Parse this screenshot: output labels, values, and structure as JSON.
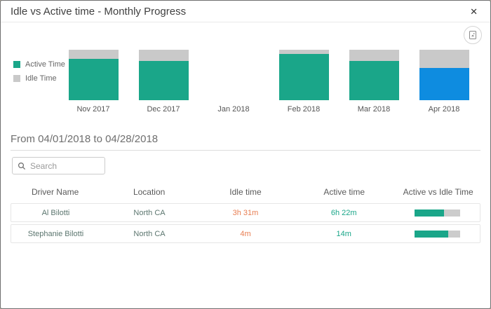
{
  "dialog": {
    "title": "Idle vs Active time - Monthly Progress",
    "close_glyph": "✕"
  },
  "toolbar": {
    "export_icon": "export-image-icon"
  },
  "chart_data": {
    "type": "bar",
    "stacked": true,
    "normalized_percent": true,
    "categories": [
      "Nov 2017",
      "Dec 2017",
      "Jan 2018",
      "Feb 2018",
      "Mar 2018",
      "Apr 2018"
    ],
    "series": [
      {
        "name": "Active Time",
        "color": "#1AA689",
        "values_pct": [
          82,
          78,
          0,
          92,
          78,
          64
        ]
      },
      {
        "name": "Idle Time",
        "color": "#C9C9C9",
        "values_pct": [
          18,
          22,
          0,
          8,
          22,
          36
        ]
      }
    ],
    "selected_category": "Apr 2018",
    "selected_color": "#0E8CE0",
    "legend_position": "left",
    "title": "Idle vs Active time - Monthly Progress"
  },
  "period": {
    "label": "From 04/01/2018 to 04/28/2018"
  },
  "search": {
    "placeholder": "Search"
  },
  "table": {
    "columns": [
      "Driver Name",
      "Location",
      "Idle time",
      "Active time",
      "Active vs Idle Time"
    ],
    "rows": [
      {
        "driver": "Al Bilotti",
        "location": "North CA",
        "idle": "3h 31m",
        "active": "6h 22m",
        "active_pct": 64
      },
      {
        "driver": "Stephanie Bilotti",
        "location": "North CA",
        "idle": "4m",
        "active": "14m",
        "active_pct": 74
      }
    ]
  },
  "colors": {
    "active": "#1AA689",
    "idle_bar": "#C9C9C9",
    "selected_month": "#0E8CE0",
    "idle_text": "#E87E52",
    "active_text": "#1AA689"
  }
}
